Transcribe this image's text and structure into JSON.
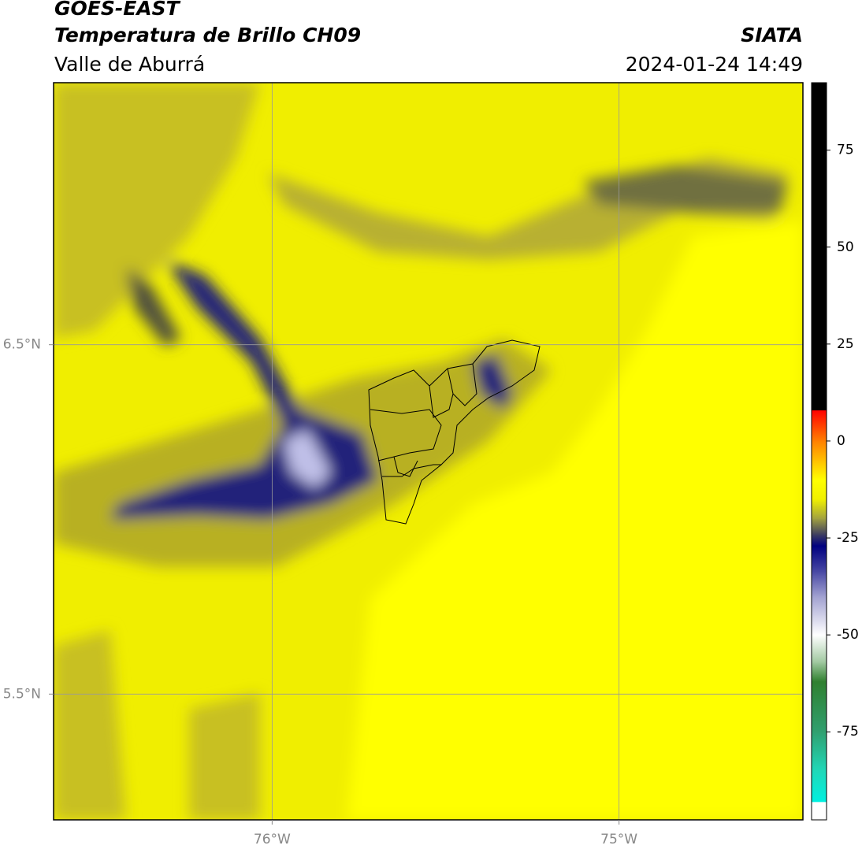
{
  "header": {
    "title": "GOES-EAST",
    "subtitle": "Temperatura de Brillo CH09",
    "region": "Valle de Aburrá",
    "source": "SIATA",
    "datetime": "2024-01-24 14:49"
  },
  "map": {
    "xlim": [
      -76.63,
      -74.47
    ],
    "ylim": [
      5.14,
      7.25
    ],
    "xticks": [
      {
        "value": -76,
        "label": "76°W"
      },
      {
        "value": -75,
        "label": "75°W"
      }
    ],
    "yticks": [
      {
        "value": 5.5,
        "label": "5.5°N"
      },
      {
        "value": 6.5,
        "label": "6.5°N"
      }
    ],
    "grid": true
  },
  "colorbar": {
    "lim": [
      -97.7,
      92.4
    ],
    "ticks": [
      -75,
      -50,
      -25,
      0,
      25,
      50,
      75
    ],
    "colormap": [
      {
        "value": -97.7,
        "color": "#ffffff"
      },
      {
        "value": -93,
        "color": "#ffffff"
      },
      {
        "value": -93,
        "color": "#00f0e0"
      },
      {
        "value": -85,
        "color": "#20d8b8"
      },
      {
        "value": -75,
        "color": "#30a070"
      },
      {
        "value": -62,
        "color": "#308030"
      },
      {
        "value": -57,
        "color": "#a0c8a0"
      },
      {
        "value": -50,
        "color": "#ffffff"
      },
      {
        "value": -40,
        "color": "#a0a0d0"
      },
      {
        "value": -33,
        "color": "#4040a0"
      },
      {
        "value": -27,
        "color": "#000080"
      },
      {
        "value": -24,
        "color": "#404060"
      },
      {
        "value": -20,
        "color": "#a0a040"
      },
      {
        "value": -15,
        "color": "#f0f000"
      },
      {
        "value": -10,
        "color": "#ffff00"
      },
      {
        "value": -5,
        "color": "#ffc000"
      },
      {
        "value": 0,
        "color": "#ff8000"
      },
      {
        "value": 8,
        "color": "#ff0000"
      },
      {
        "value": 8,
        "color": "#000000"
      },
      {
        "value": 92.4,
        "color": "#000000"
      }
    ]
  }
}
